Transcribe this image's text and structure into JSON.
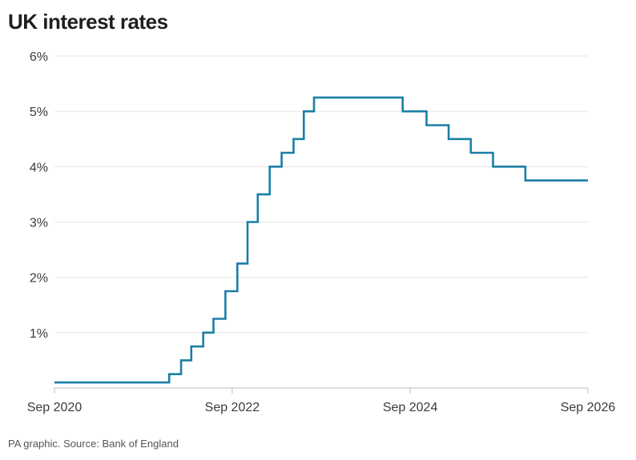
{
  "header": {
    "title": "UK interest rates"
  },
  "footer": {
    "source": "PA graphic. Source: Bank of England"
  },
  "colors": {
    "line": "#1b7fa6",
    "grid": "#e6e6e6",
    "text": "#3a3a3a"
  },
  "chart_data": {
    "type": "line",
    "step": true,
    "title": "UK interest rates",
    "xlabel": "",
    "ylabel": "",
    "ylim": [
      0,
      6
    ],
    "xlim": [
      "2020-09-01",
      "2026-09-01"
    ],
    "grid": true,
    "y_ticks": [
      {
        "value": 1,
        "label": "1%"
      },
      {
        "value": 2,
        "label": "2%"
      },
      {
        "value": 3,
        "label": "3%"
      },
      {
        "value": 4,
        "label": "4%"
      },
      {
        "value": 5,
        "label": "5%"
      },
      {
        "value": 6,
        "label": "6%"
      }
    ],
    "x_ticks": [
      {
        "value": "2020-09-01",
        "label": "Sep 2020"
      },
      {
        "value": "2022-09-01",
        "label": "Sep 2022"
      },
      {
        "value": "2024-09-01",
        "label": "Sep 2024"
      },
      {
        "value": "2026-09-01",
        "label": "Sep 2026"
      }
    ],
    "series": [
      {
        "points": [
          {
            "date": "2020-09-01",
            "rate": 0.1
          },
          {
            "date": "2021-12-16",
            "rate": 0.25
          },
          {
            "date": "2022-02-03",
            "rate": 0.5
          },
          {
            "date": "2022-03-17",
            "rate": 0.75
          },
          {
            "date": "2022-05-05",
            "rate": 1.0
          },
          {
            "date": "2022-06-16",
            "rate": 1.25
          },
          {
            "date": "2022-08-04",
            "rate": 1.75
          },
          {
            "date": "2022-09-22",
            "rate": 2.25
          },
          {
            "date": "2022-11-03",
            "rate": 3.0
          },
          {
            "date": "2022-12-15",
            "rate": 3.5
          },
          {
            "date": "2023-02-02",
            "rate": 4.0
          },
          {
            "date": "2023-03-23",
            "rate": 4.25
          },
          {
            "date": "2023-05-11",
            "rate": 4.5
          },
          {
            "date": "2023-06-22",
            "rate": 5.0
          },
          {
            "date": "2023-08-03",
            "rate": 5.25
          },
          {
            "date": "2024-08-01",
            "rate": 5.0
          },
          {
            "date": "2024-11-07",
            "rate": 4.75
          },
          {
            "date": "2025-02-06",
            "rate": 4.5
          },
          {
            "date": "2025-05-08",
            "rate": 4.25
          },
          {
            "date": "2025-08-07",
            "rate": 4.0
          },
          {
            "date": "2025-12-18",
            "rate": 3.75
          },
          {
            "date": "2026-09-01",
            "rate": 3.75
          }
        ]
      }
    ]
  }
}
